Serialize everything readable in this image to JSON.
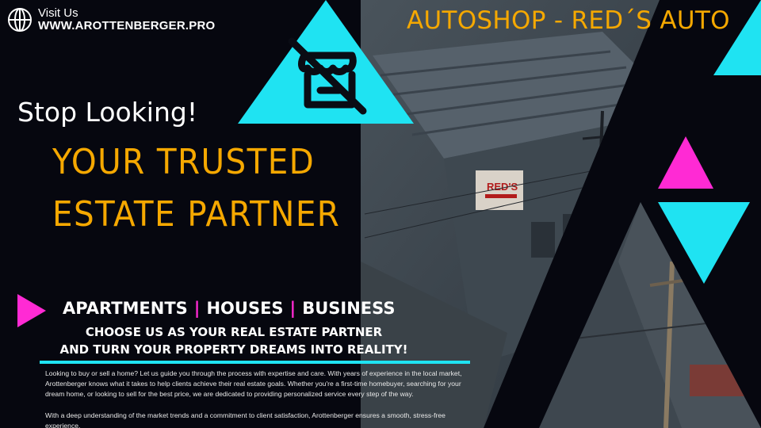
{
  "header": {
    "visit_label": "Visit Us",
    "visit_url": "WWW.AROTTENBERGER.PRO",
    "shop_title": "AUTOSHOP - RED´S AUTO"
  },
  "hero": {
    "tagline": "Stop Looking!",
    "headline_1": "YOUR TRUSTED",
    "headline_2": "ESTATE PARTNER"
  },
  "categories": {
    "items": [
      "APARTMENTS",
      "HOUSES",
      "BUSINESS"
    ],
    "separator": "|"
  },
  "cta": {
    "line_1": "CHOOSE US AS YOUR REAL ESTATE PARTNER",
    "line_2": "AND TURN YOUR PROPERTY DREAMS INTO REALITY!"
  },
  "body": {
    "paragraph_1": "Looking to buy or sell a home? Let us guide you through the process with expertise and care. With years of experience in the local market, Arottenberger knows what it takes to help clients achieve their real estate goals. Whether you're a first-time homebuyer, searching for your dream home, or looking to sell for the best price, we are dedicated to providing personalized service every step of the way.",
    "paragraph_2": "With a deep understanding of the market trends and a commitment to client satisfaction, Arottenberger ensures a smooth, stress-free experience."
  },
  "photo": {
    "sign_text": "RED'S"
  },
  "icons": [
    "globe-icon",
    "no-shop-icon",
    "play-arrow-icon"
  ],
  "colors": {
    "background": "#06070f",
    "accent_orange": "#f5a800",
    "accent_cyan": "#1fe3f2",
    "accent_magenta": "#ff2ad4"
  }
}
